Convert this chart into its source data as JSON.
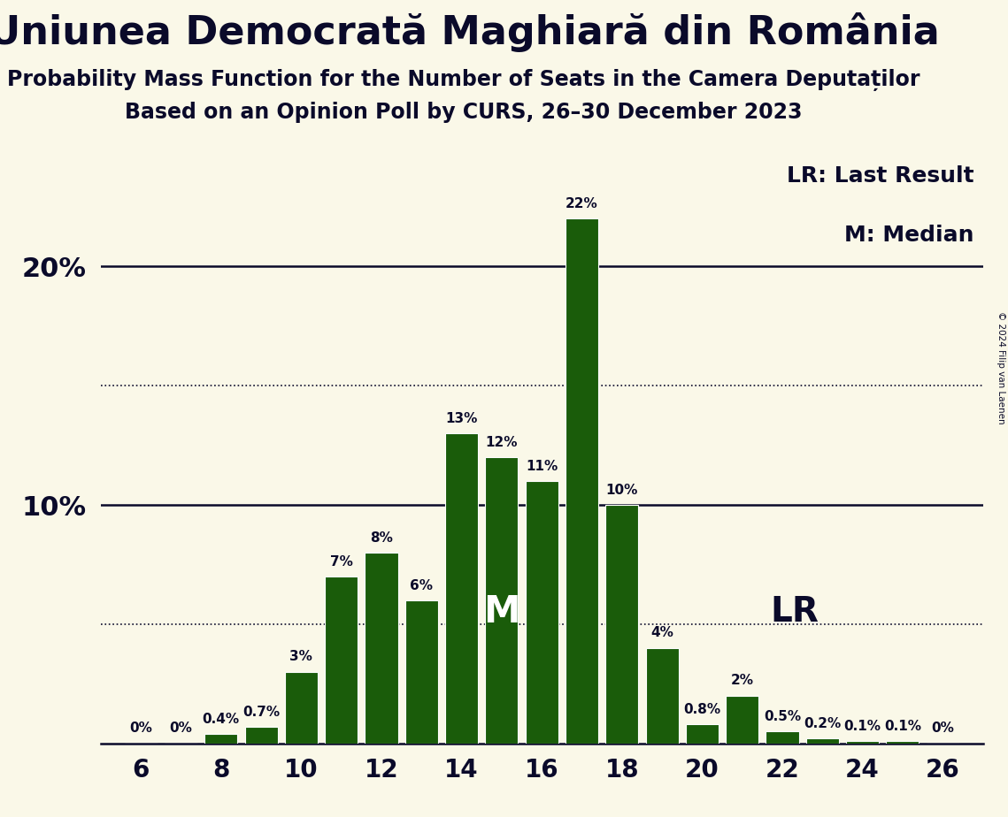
{
  "title": "Uniunea Democrată Maghiară din România",
  "subtitle1": "Probability Mass Function for the Number of Seats in the Camera Deputaților",
  "subtitle2": "Based on an Opinion Poll by CURS, 26–30 December 2023",
  "copyright": "© 2024 Filip van Laenen",
  "seats": [
    6,
    7,
    8,
    9,
    10,
    11,
    12,
    13,
    14,
    15,
    16,
    17,
    18,
    19,
    20,
    21,
    22,
    23,
    24,
    25,
    26
  ],
  "probabilities": [
    0.0,
    0.0,
    0.4,
    0.7,
    3.0,
    7.0,
    8.0,
    6.0,
    13.0,
    12.0,
    11.0,
    22.0,
    10.0,
    4.0,
    0.8,
    2.0,
    0.5,
    0.2,
    0.1,
    0.1,
    0.0
  ],
  "labels": [
    "0%",
    "0%",
    "0.4%",
    "0.7%",
    "3%",
    "7%",
    "8%",
    "6%",
    "13%",
    "12%",
    "11%",
    "22%",
    "10%",
    "4%",
    "0.8%",
    "2%",
    "0.5%",
    "0.2%",
    "0.1%",
    "0.1%",
    "0%"
  ],
  "bar_color": "#1a5c0a",
  "background_color": "#faf8e8",
  "text_color": "#0a0a2a",
  "median_seat": 15,
  "last_result_seat": 21,
  "ylim_max": 25,
  "solid_lines": [
    10.0,
    20.0
  ],
  "dotted_lines": [
    5.0,
    15.0
  ],
  "legend_lr": "LR: Last Result",
  "legend_m": "M: Median",
  "xlabel_seats": [
    6,
    8,
    10,
    12,
    14,
    16,
    18,
    20,
    22,
    24,
    26
  ],
  "title_fontsize": 32,
  "subtitle_fontsize": 17,
  "label_fontsize": 11,
  "ytick_fontsize": 22,
  "xtick_fontsize": 20,
  "bar_width": 0.82
}
